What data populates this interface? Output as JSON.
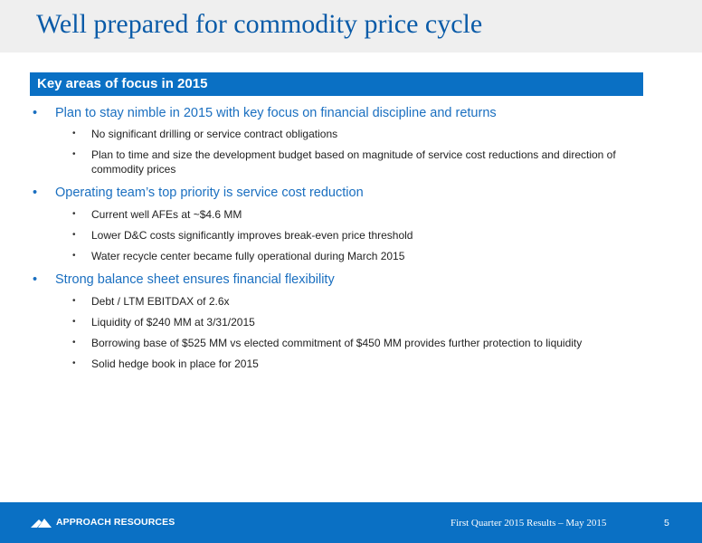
{
  "header": {
    "title": "Well prepared for commodity price cycle"
  },
  "section": {
    "title": "Key areas of focus in 2015"
  },
  "bullets": [
    {
      "text": "Plan to stay nimble in 2015 with key focus on financial discipline and returns",
      "sub": [
        "No significant drilling or service contract obligations",
        "Plan to time and size the development budget based on magnitude of service cost reductions and direction of commodity prices"
      ]
    },
    {
      "text": "Operating team’s top priority is service cost reduction",
      "sub": [
        "Current well AFEs at ~$4.6 MM",
        "Lower D&C costs significantly improves break-even price threshold",
        "Water recycle center became fully operational during March 2015"
      ]
    },
    {
      "text": "Strong balance sheet ensures financial flexibility",
      "sub": [
        "Debt / LTM EBITDAX of 2.6x",
        "Liquidity of $240 MM at 3/31/2015",
        "Borrowing base of $525 MM vs elected commitment of $450 MM provides further protection to liquidity",
        "Solid hedge book in place for 2015"
      ]
    }
  ],
  "footer": {
    "logo_text": "APPROACH RESOURCES",
    "caption": "First Quarter 2015 Results – May 2015",
    "page_number": "5"
  },
  "colors": {
    "title": "#0a5ba8",
    "accent_bar": "#0a70c4",
    "bullet_blue": "#1a6fc0",
    "body_text": "#222222"
  }
}
